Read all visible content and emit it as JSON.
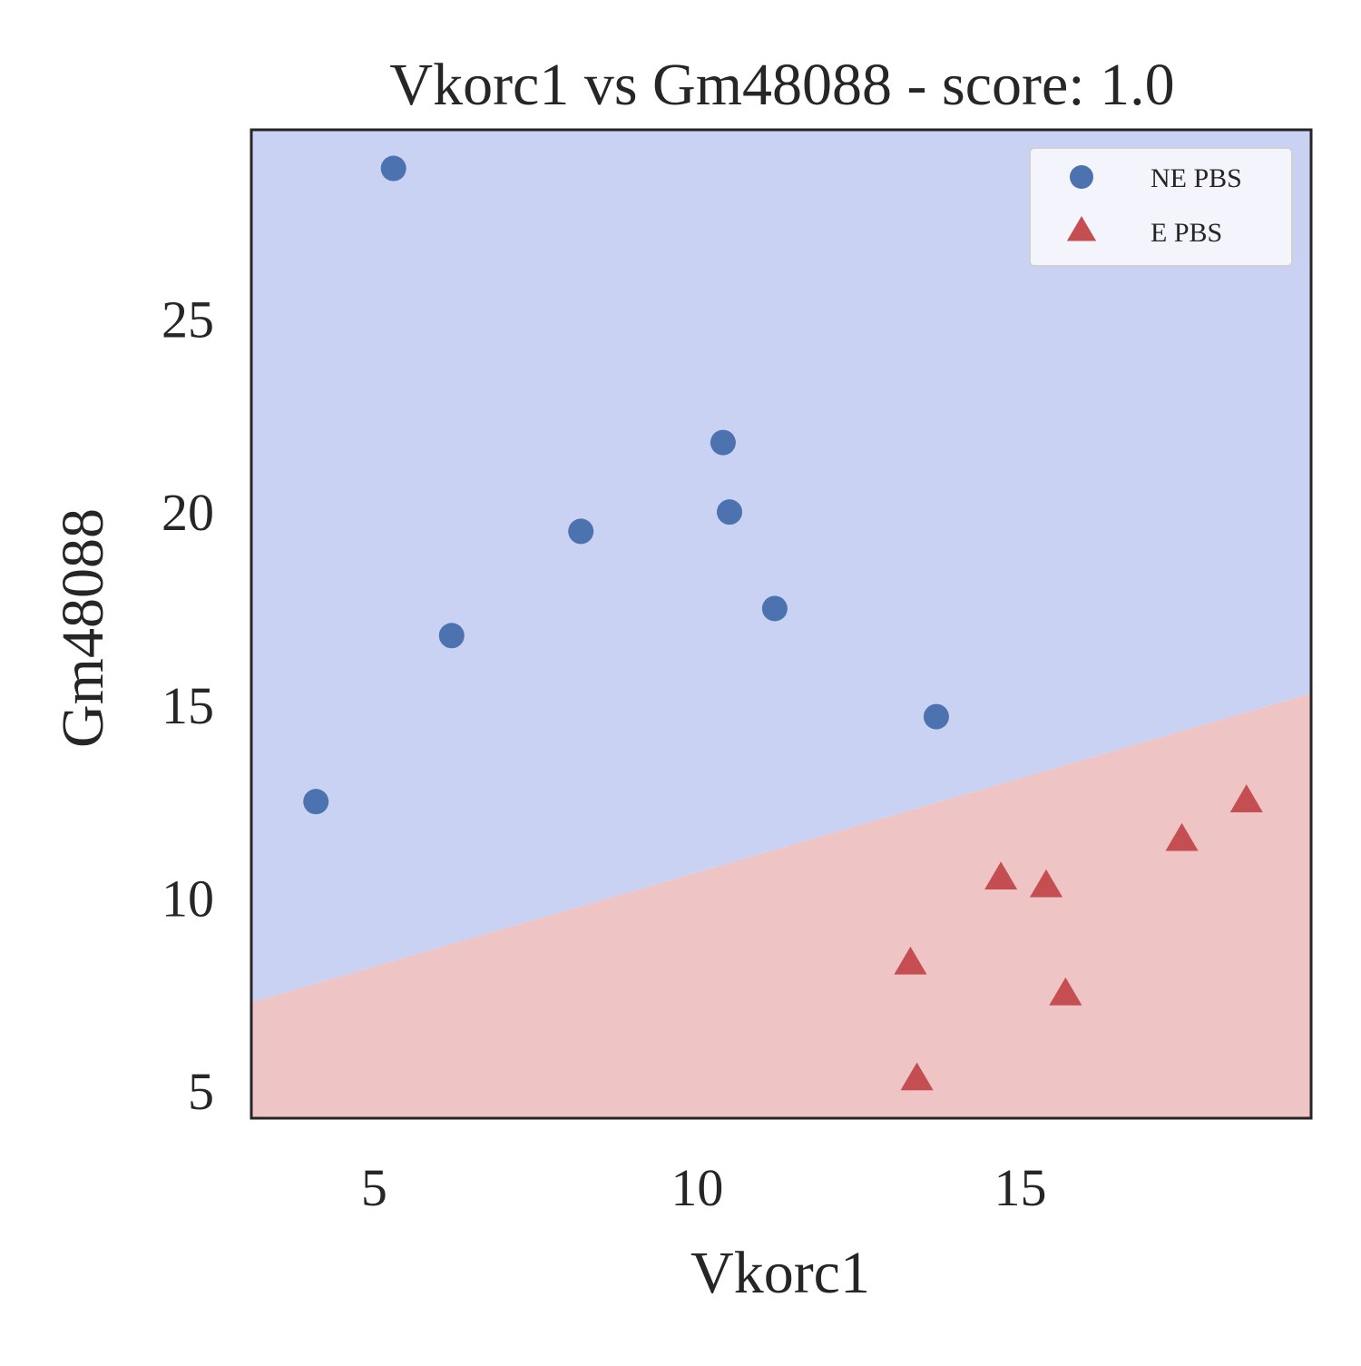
{
  "chart_data": {
    "type": "scatter",
    "title": "Vkorc1 vs Gm48088 - score: 1.0",
    "xlabel": "Vkorc1",
    "ylabel": "Gm48088",
    "xlim": [
      3.1,
      19.5
    ],
    "ylim": [
      4.3,
      29.9
    ],
    "x_ticks": [
      {
        "value": 5,
        "label": "5"
      },
      {
        "value": 10,
        "label": "10"
      },
      {
        "value": 15,
        "label": "15"
      }
    ],
    "y_ticks": [
      {
        "value": 5,
        "label": "5"
      },
      {
        "value": 10,
        "label": "10"
      },
      {
        "value": 15,
        "label": "15"
      },
      {
        "value": 20,
        "label": "20"
      },
      {
        "value": 25,
        "label": "25"
      }
    ],
    "grid": false,
    "legend_position": "top-right",
    "decision_boundary": {
      "type": "line",
      "points": [
        [
          3.1,
          7.3
        ],
        [
          19.5,
          15.3
        ]
      ],
      "region_above_color": "#c9d2f2",
      "region_below_color": "#efc4c4"
    },
    "series": [
      {
        "name": "NE PBS",
        "marker": "circle",
        "color": "#4c72b0",
        "points": [
          {
            "x": 5.3,
            "y": 28.9
          },
          {
            "x": 10.4,
            "y": 21.8
          },
          {
            "x": 10.5,
            "y": 20.0
          },
          {
            "x": 8.2,
            "y": 19.5
          },
          {
            "x": 11.2,
            "y": 17.5
          },
          {
            "x": 6.2,
            "y": 16.8
          },
          {
            "x": 13.7,
            "y": 14.7
          },
          {
            "x": 4.1,
            "y": 12.5
          }
        ]
      },
      {
        "name": "E PBS",
        "marker": "triangle",
        "color": "#c44e52",
        "points": [
          {
            "x": 18.5,
            "y": 12.5
          },
          {
            "x": 17.5,
            "y": 11.5
          },
          {
            "x": 14.7,
            "y": 10.5
          },
          {
            "x": 15.4,
            "y": 10.3
          },
          {
            "x": 13.3,
            "y": 8.3
          },
          {
            "x": 15.7,
            "y": 7.5
          },
          {
            "x": 13.4,
            "y": 5.3
          }
        ]
      }
    ]
  }
}
